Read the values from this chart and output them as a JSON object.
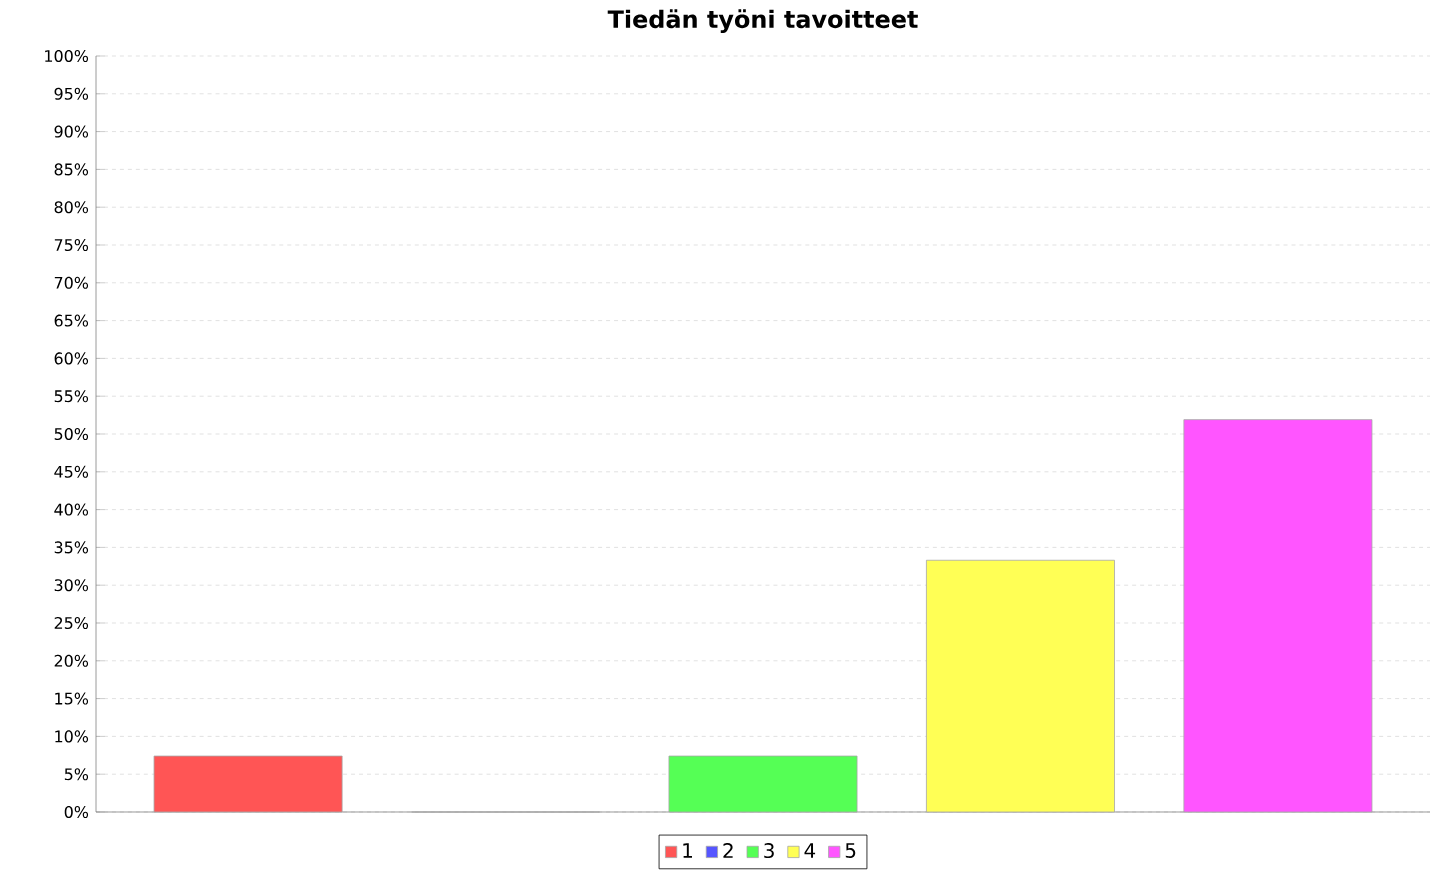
{
  "chart_data": {
    "type": "bar",
    "title": "Tiedän työni tavoitteet",
    "categories": [
      null
    ],
    "series": [
      {
        "name": "1",
        "color": "#ff5555",
        "values": [
          7.4
        ]
      },
      {
        "name": "2",
        "color": "#5555ff",
        "values": [
          0
        ]
      },
      {
        "name": "3",
        "color": "#55ff55",
        "values": [
          7.4
        ]
      },
      {
        "name": "4",
        "color": "#ffff55",
        "values": [
          33.3
        ]
      },
      {
        "name": "5",
        "color": "#ff55ff",
        "values": [
          51.9
        ]
      }
    ],
    "ylim": [
      0,
      100
    ],
    "yticks": [
      {
        "value": 0,
        "label": "0%"
      },
      {
        "value": 5,
        "label": "5%"
      },
      {
        "value": 10,
        "label": "10%"
      },
      {
        "value": 15,
        "label": "15%"
      },
      {
        "value": 20,
        "label": "20%"
      },
      {
        "value": 25,
        "label": "25%"
      },
      {
        "value": 30,
        "label": "30%"
      },
      {
        "value": 35,
        "label": "35%"
      },
      {
        "value": 40,
        "label": "40%"
      },
      {
        "value": 45,
        "label": "45%"
      },
      {
        "value": 50,
        "label": "50%"
      },
      {
        "value": 55,
        "label": "55%"
      },
      {
        "value": 60,
        "label": "60%"
      },
      {
        "value": 65,
        "label": "65%"
      },
      {
        "value": 70,
        "label": "70%"
      },
      {
        "value": 75,
        "label": "75%"
      },
      {
        "value": 80,
        "label": "80%"
      },
      {
        "value": 85,
        "label": "85%"
      },
      {
        "value": 90,
        "label": "90%"
      },
      {
        "value": 95,
        "label": "95%"
      },
      {
        "value": 100,
        "label": "100%"
      }
    ],
    "grid": "y",
    "legend": "bottom",
    "tick_labels": "y"
  }
}
